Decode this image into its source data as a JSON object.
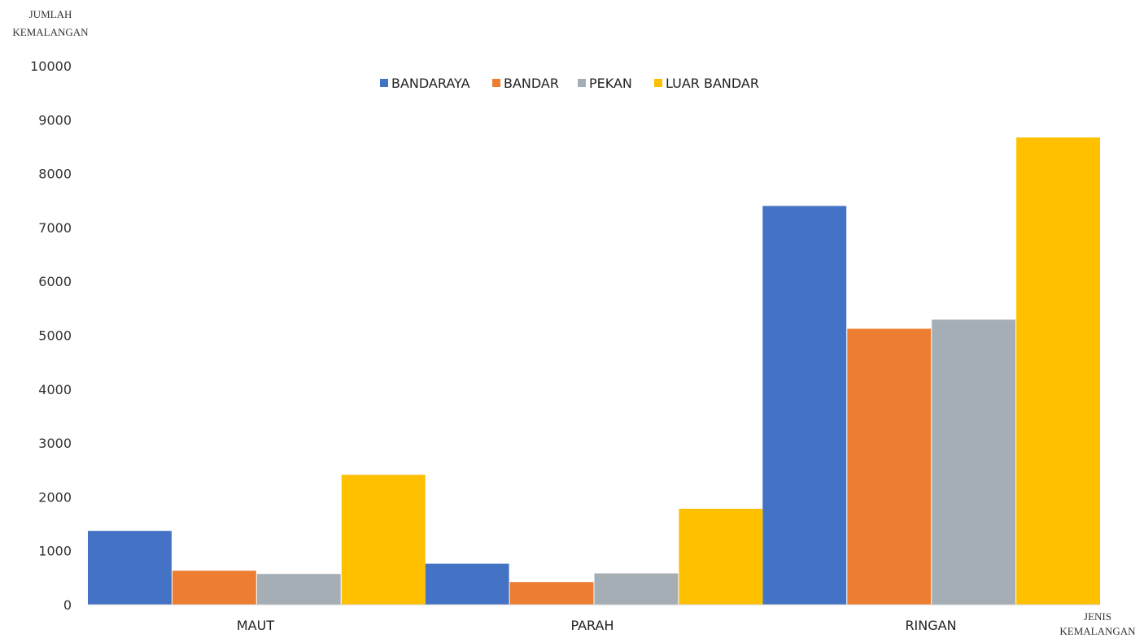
{
  "chart_data": {
    "type": "bar",
    "ylabel": [
      "JUMLAH",
      "KEMALANGAN"
    ],
    "xlabel": [
      "JENIS",
      "KEMALANGAN"
    ],
    "categories": [
      "MAUT",
      "PARAH",
      "RINGAN"
    ],
    "series": [
      {
        "name": "BANDARAYA",
        "color": "#4472c4",
        "values": [
          1370,
          760,
          7400
        ]
      },
      {
        "name": "BANDAR",
        "color": "#ed7d31",
        "values": [
          630,
          420,
          5120
        ]
      },
      {
        "name": "PEKAN",
        "color": "#a5adb5",
        "values": [
          570,
          580,
          5290
        ]
      },
      {
        "name": "LUAR BANDAR",
        "color": "#ffc000",
        "values": [
          2410,
          1780,
          8670
        ]
      }
    ],
    "ylim": [
      0,
      10000
    ],
    "yticks": [
      "0",
      "1000",
      "2000",
      "3000",
      "4000",
      "5000",
      "6000",
      "7000",
      "8000",
      "9000",
      "10000"
    ],
    "grid": false,
    "legend": "top-center"
  }
}
